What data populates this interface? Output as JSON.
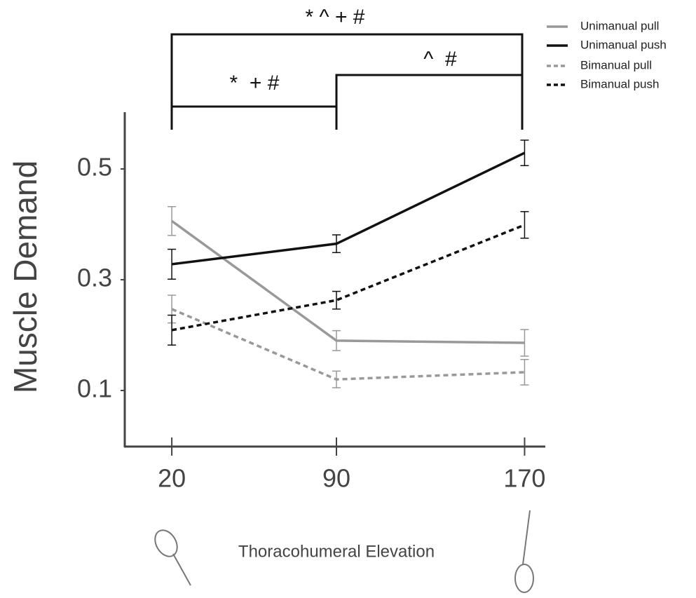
{
  "chart_data": {
    "type": "line",
    "xlabel": "Thoracohumeral Elevation",
    "ylabel": "Muscle Demand",
    "x": [
      20,
      90,
      170
    ],
    "xlim": [
      0,
      180
    ],
    "xticks": [
      20,
      90,
      170
    ],
    "ylim": [
      0,
      0.6
    ],
    "yticks": [
      0.1,
      0.3,
      0.5
    ],
    "series": [
      {
        "name": "Unimanual pull",
        "color": "#999999",
        "linestyle": "solid",
        "values": [
          0.406,
          0.19,
          0.186
        ],
        "errors": [
          0.026,
          0.018,
          0.024
        ]
      },
      {
        "name": "Unimanual push",
        "color": "#111111",
        "linestyle": "solid",
        "values": [
          0.328,
          0.365,
          0.529
        ],
        "errors": [
          0.027,
          0.016,
          0.023
        ]
      },
      {
        "name": "Bimanual pull",
        "color": "#999999",
        "linestyle": "dashed",
        "values": [
          0.247,
          0.12,
          0.133
        ],
        "errors": [
          0.025,
          0.015,
          0.023
        ]
      },
      {
        "name": "Bimanual push",
        "color": "#111111",
        "linestyle": "dashed",
        "values": [
          0.209,
          0.263,
          0.399
        ],
        "errors": [
          0.027,
          0.016,
          0.024
        ]
      }
    ],
    "annotations": [
      "* ^ + #",
      "^  #",
      "*  + #"
    ]
  }
}
